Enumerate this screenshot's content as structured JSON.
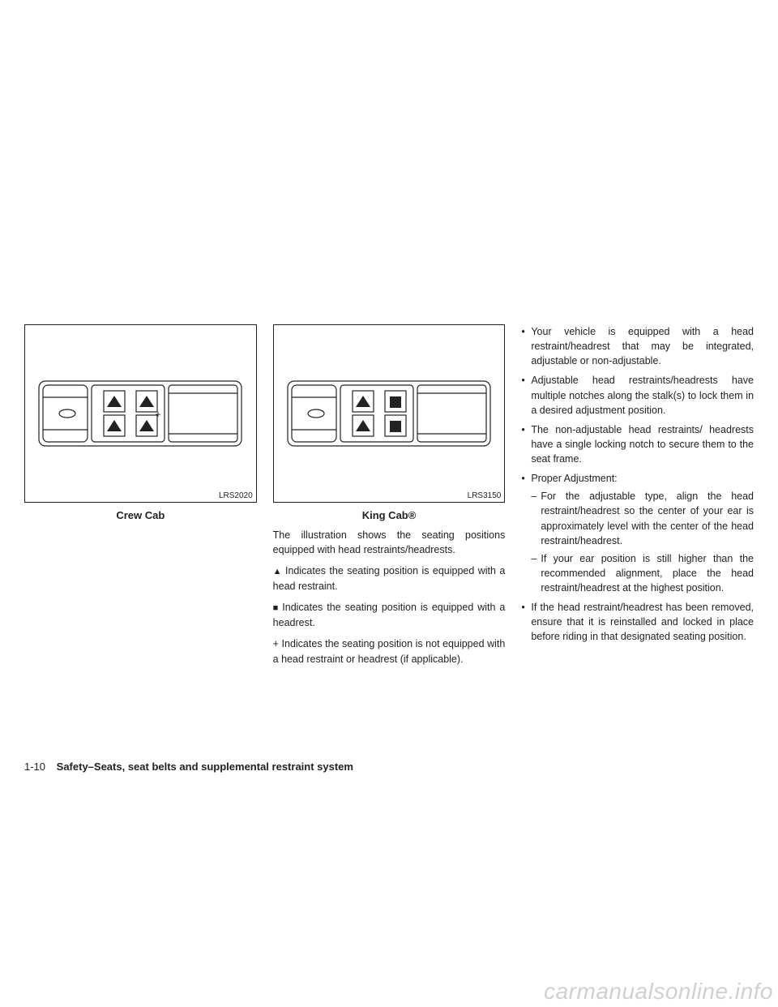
{
  "column1": {
    "diagram_code": "LRS2020",
    "caption": "Crew Cab",
    "diagram": {
      "seats": [
        {
          "row": 0,
          "col": 0,
          "type": "triangle"
        },
        {
          "row": 0,
          "col": 1,
          "type": "triangle"
        },
        {
          "row": 1,
          "col": 0,
          "type": "triangle"
        },
        {
          "row": 1,
          "col": 1,
          "type": "triangle"
        }
      ],
      "center_symbol": "+"
    }
  },
  "column2": {
    "diagram_code": "LRS3150",
    "caption": "King Cab®",
    "diagram": {
      "seats": [
        {
          "row": 0,
          "col": 0,
          "type": "triangle"
        },
        {
          "row": 0,
          "col": 1,
          "type": "square"
        },
        {
          "row": 1,
          "col": 0,
          "type": "triangle"
        },
        {
          "row": 1,
          "col": 1,
          "type": "square"
        }
      ],
      "center_symbol": null
    },
    "intro": "The illustration shows the seating positions equipped with head restraints/headrests.",
    "legend_triangle": " Indicates the seating position is equipped with a head restraint.",
    "legend_square": " Indicates the seating position is equipped with a headrest.",
    "legend_plus": "+ Indicates the seating position is not equipped with a head restraint or headrest (if applicable)."
  },
  "column3": {
    "bullets": [
      {
        "text": "Your vehicle is equipped with a head restraint/headrest that may be integrated, adjustable or non-adjustable."
      },
      {
        "text": "Adjustable head restraints/headrests have multiple notches along the stalk(s) to lock them in a desired adjustment position."
      },
      {
        "text": "The non-adjustable head restraints/ headrests have a single locking notch to secure them to the seat frame."
      },
      {
        "text": "Proper Adjustment:",
        "sub": [
          "For the adjustable type, align the head restraint/headrest so the center of your ear is approximately level with the center of the head restraint/headrest.",
          "If your ear position is still higher than the recommended alignment, place the head restraint/headrest at the highest position."
        ]
      },
      {
        "text": "If the head restraint/headrest has been removed, ensure that it is reinstalled and locked in place before riding in that designated seating position."
      }
    ]
  },
  "footer": {
    "page_number": "1-10",
    "section_title": "Safety–Seats, seat belts and supplemental restraint system"
  },
  "watermark": "carmanualsonline.info",
  "styling": {
    "stroke_color": "#222222",
    "background_color": "#ffffff",
    "font_size_body": 12.5,
    "font_size_caption": 13,
    "font_size_code": 10,
    "watermark_color": "rgba(120,120,120,0.35)"
  }
}
